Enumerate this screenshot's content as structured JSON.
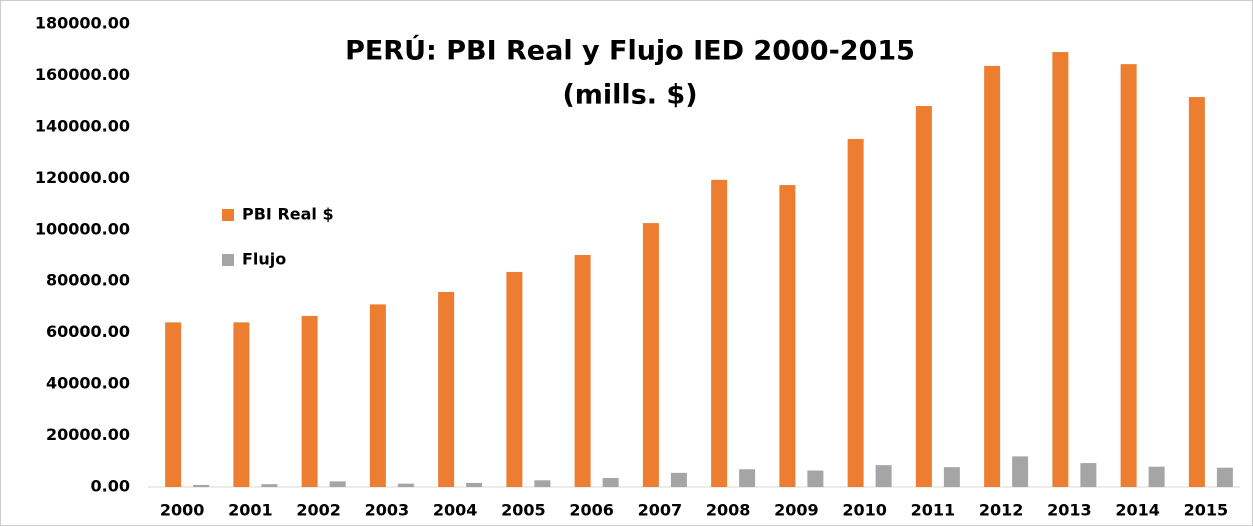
{
  "chart_data": {
    "type": "bar",
    "title": "PERÚ: PBI Real y Flujo IED 2000-2015",
    "subtitle": "(mills. $)",
    "categories": [
      "2000",
      "2001",
      "2002",
      "2003",
      "2004",
      "2005",
      "2006",
      "2007",
      "2008",
      "2009",
      "2010",
      "2011",
      "2012",
      "2013",
      "2014",
      "2015"
    ],
    "series": [
      {
        "name": "PBI Real $",
        "color": "#ed7d31",
        "values": [
          64000,
          64000,
          66500,
          71000,
          75800,
          83600,
          90200,
          102600,
          119400,
          117400,
          135300,
          148100,
          163700,
          169100,
          164400,
          151600
        ]
      },
      {
        "name": "Flujo",
        "color": "#a5a5a5",
        "values": [
          810,
          1100,
          2200,
          1300,
          1600,
          2600,
          3500,
          5500,
          6900,
          6400,
          8500,
          7700,
          11900,
          9300,
          7900,
          7500
        ]
      }
    ],
    "ylim": [
      0,
      180000
    ],
    "yticks": [
      {
        "value": 0,
        "label": "0.00"
      },
      {
        "value": 20000,
        "label": "20000.00"
      },
      {
        "value": 40000,
        "label": "40000.00"
      },
      {
        "value": 60000,
        "label": "60000.00"
      },
      {
        "value": 80000,
        "label": "80000.00"
      },
      {
        "value": 100000,
        "label": "100000.00"
      },
      {
        "value": 120000,
        "label": "120000.00"
      },
      {
        "value": 140000,
        "label": "140000.00"
      },
      {
        "value": 160000,
        "label": "160000.00"
      },
      {
        "value": 180000,
        "label": "180000.00"
      }
    ],
    "legend": "left"
  }
}
